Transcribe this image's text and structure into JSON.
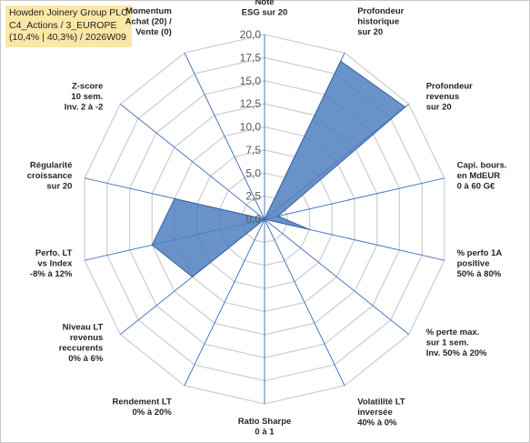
{
  "title_box": {
    "line1": "Howden Joinery Group PLC",
    "line2": "C4_Actions / 3_EUROPE",
    "line3": "(10,4% | 40,3%) / 2026W09"
  },
  "chart_data": {
    "type": "radar",
    "rmin": 0,
    "rmax": 20,
    "ticks": [
      "0,0",
      "2,5",
      "5,0",
      "7,5",
      "10,0",
      "12,5",
      "15,0",
      "17,5",
      "20,0"
    ],
    "tick_values": [
      0,
      2.5,
      5,
      7.5,
      10,
      12.5,
      15,
      17.5,
      20
    ],
    "axes": [
      {
        "label": [
          "Note",
          "ESG sur 20"
        ],
        "value": 0
      },
      {
        "label": [
          "Profondeur",
          "historique",
          "sur 20"
        ],
        "value": 19
      },
      {
        "label": [
          "Profondeur",
          "revenus",
          "sur 20"
        ],
        "value": 19.5
      },
      {
        "label": [
          "Capi. bours.",
          "en MdEUR",
          "0 à 60 G€"
        ],
        "value": 1.5
      },
      {
        "label": [
          "% perfo 1A",
          "positive",
          "50% à 80%"
        ],
        "value": 5
      },
      {
        "label": [
          "% perte max.",
          "sur 1 sem.",
          "Inv. 50% à 20%"
        ],
        "value": 0
      },
      {
        "label": [
          "Volatilité LT",
          "inversée",
          "40% à 0%"
        ],
        "value": 0
      },
      {
        "label": [
          "Ratio Sharpe",
          "0 à 1"
        ],
        "value": 0
      },
      {
        "label": [
          "Rendement LT",
          "0% à 20%"
        ],
        "value": 0
      },
      {
        "label": [
          "Niveau LT",
          "revenus",
          "reccurents",
          "0% à 6%"
        ],
        "value": 10
      },
      {
        "label": [
          "Perfo. LT",
          "vs Index",
          "-8% à 12%"
        ],
        "value": 12.5
      },
      {
        "label": [
          "Régularité",
          "croissance",
          "sur 20"
        ],
        "value": 10
      },
      {
        "label": [
          "Z-score",
          "10 sem.",
          "Inv. 2 à -2"
        ],
        "value": 0
      },
      {
        "label": [
          "Momentum",
          "Achat (20) /",
          "Vente (0)"
        ],
        "value": 0
      }
    ],
    "grid": true,
    "legend": "none"
  },
  "colors": {
    "fill": "#4f7fbf",
    "stroke": "#3a64a0",
    "grid": "#d0d0d0",
    "spoke": "#4a78c0",
    "title_bg": "#fbe7a6"
  }
}
